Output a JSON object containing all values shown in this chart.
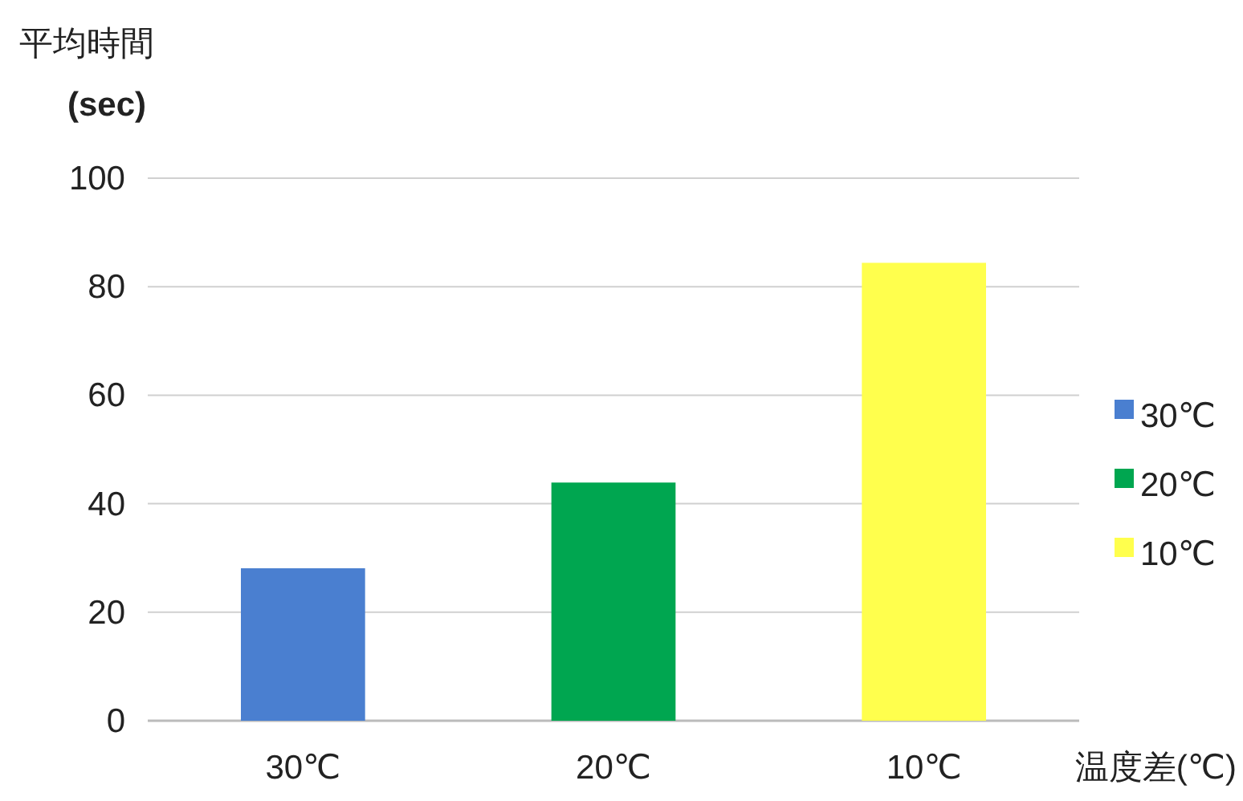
{
  "chart_data": {
    "type": "bar",
    "ylabel": "平均時間\n(sec)",
    "xlabel": "温度差(℃)",
    "categories": [
      "30℃",
      "20℃",
      "10℃"
    ],
    "stacked": true,
    "series": [
      {
        "name": "30℃",
        "color": "#4a7fd0",
        "values": [
          28.1,
          null,
          null
        ]
      },
      {
        "name": "20℃",
        "color": "#00a650",
        "values": [
          null,
          43.9,
          null
        ]
      },
      {
        "name": "10℃",
        "color": "#ffff4d",
        "values": [
          null,
          null,
          84.4
        ]
      }
    ],
    "ylim": [
      0,
      100
    ],
    "yticks": [
      0,
      20,
      40,
      60,
      80,
      100
    ],
    "grid": "y",
    "legend": "right"
  }
}
